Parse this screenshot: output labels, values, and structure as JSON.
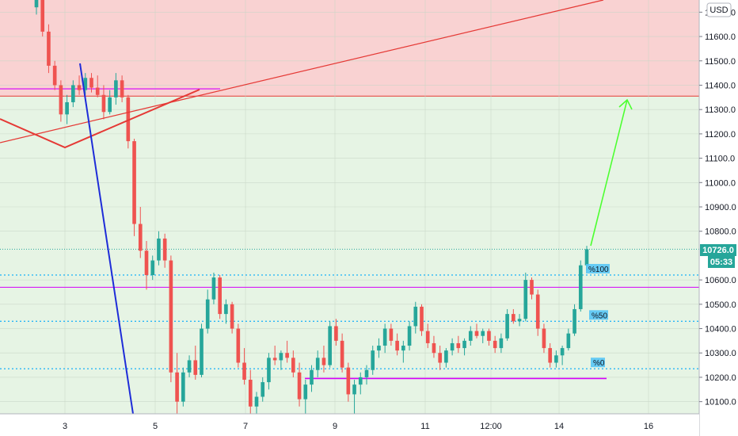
{
  "chart_data": {
    "type": "candlestick",
    "currency": "USD",
    "ylim": [
      10050,
      11750
    ],
    "y_ticks": [
      {
        "v": 11700,
        "label": "11700.0"
      },
      {
        "v": 11600,
        "label": "11600.0"
      },
      {
        "v": 11500,
        "label": "11500.0"
      },
      {
        "v": 11400,
        "label": "11400.0"
      },
      {
        "v": 11300,
        "label": "11300.0"
      },
      {
        "v": 11200,
        "label": "11200.0"
      },
      {
        "v": 11100,
        "label": "11100.0"
      },
      {
        "v": 11000,
        "label": "11000.0"
      },
      {
        "v": 10900,
        "label": "10900.0"
      },
      {
        "v": 10800,
        "label": "10800.0"
      },
      {
        "v": 10600,
        "label": "10600.0"
      },
      {
        "v": 10500,
        "label": "10500.0"
      },
      {
        "v": 10400,
        "label": "10400.0"
      },
      {
        "v": 10300,
        "label": "10300.0"
      },
      {
        "v": 10200,
        "label": "10200.0"
      },
      {
        "v": 10100,
        "label": "10100.0"
      }
    ],
    "x_ticks": [
      "3",
      "5",
      "7",
      "9",
      "11",
      "12:00",
      "14",
      "16"
    ],
    "current_price": "10726.0",
    "countdown": "05:33",
    "zones": [
      {
        "name": "resistance-zone",
        "from": 11355,
        "to": 11750,
        "color": "#f9d2d2"
      },
      {
        "name": "support-zone",
        "from": 10050,
        "to": 11355,
        "color": "#e6f4e4"
      }
    ],
    "zone_border_level": 11355,
    "fib_levels": [
      {
        "label": "%100",
        "value": 10620
      },
      {
        "label": "%50",
        "value": 10430
      },
      {
        "label": "%0",
        "value": 10235
      }
    ],
    "magenta_levels": [
      11385,
      10570,
      10195
    ],
    "candle_colors": {
      "up": "#26a69a",
      "down": "#ef5350"
    },
    "candles": [
      [
        11720,
        11780,
        11690,
        11760
      ],
      [
        11760,
        11770,
        11600,
        11620
      ],
      [
        11620,
        11650,
        11450,
        11480
      ],
      [
        11480,
        11500,
        11380,
        11400
      ],
      [
        11400,
        11420,
        11250,
        11280
      ],
      [
        11280,
        11360,
        11240,
        11330
      ],
      [
        11330,
        11420,
        11310,
        11400
      ],
      [
        11400,
        11440,
        11360,
        11380
      ],
      [
        11380,
        11450,
        11360,
        11430
      ],
      [
        11430,
        11450,
        11370,
        11390
      ],
      [
        11390,
        11440,
        11350,
        11360
      ],
      [
        11360,
        11400,
        11260,
        11290
      ],
      [
        11290,
        11380,
        11280,
        11350
      ],
      [
        11350,
        11450,
        11320,
        11420
      ],
      [
        11420,
        11440,
        11330,
        11350
      ],
      [
        11350,
        11360,
        11140,
        11170
      ],
      [
        11170,
        11180,
        10780,
        10830
      ],
      [
        10830,
        10900,
        10690,
        10720
      ],
      [
        10720,
        10760,
        10560,
        10620
      ],
      [
        10620,
        10700,
        10600,
        10680
      ],
      [
        10680,
        10800,
        10660,
        10770
      ],
      [
        10770,
        10790,
        10650,
        10680
      ],
      [
        10680,
        10700,
        10180,
        10220
      ],
      [
        10220,
        10300,
        10050,
        10100
      ],
      [
        10100,
        10240,
        10080,
        10220
      ],
      [
        10220,
        10290,
        10200,
        10270
      ],
      [
        10270,
        10330,
        10190,
        10210
      ],
      [
        10210,
        10420,
        10200,
        10400
      ],
      [
        10400,
        10560,
        10380,
        10520
      ],
      [
        10520,
        10630,
        10500,
        10610
      ],
      [
        10610,
        10620,
        10440,
        10460
      ],
      [
        10460,
        10520,
        10420,
        10500
      ],
      [
        10500,
        10510,
        10380,
        10400
      ],
      [
        10400,
        10420,
        10240,
        10260
      ],
      [
        10260,
        10320,
        10170,
        10190
      ],
      [
        10190,
        10230,
        10050,
        10080
      ],
      [
        10080,
        10140,
        10050,
        10120
      ],
      [
        10120,
        10200,
        10100,
        10180
      ],
      [
        10180,
        10300,
        10150,
        10280
      ],
      [
        10280,
        10330,
        10250,
        10270
      ],
      [
        10270,
        10310,
        10230,
        10300
      ],
      [
        10300,
        10350,
        10260,
        10280
      ],
      [
        10280,
        10310,
        10200,
        10220
      ],
      [
        10220,
        10260,
        10080,
        10110
      ],
      [
        10110,
        10190,
        10050,
        10170
      ],
      [
        10170,
        10250,
        10140,
        10230
      ],
      [
        10230,
        10310,
        10200,
        10280
      ],
      [
        10280,
        10330,
        10220,
        10250
      ],
      [
        10250,
        10430,
        10240,
        10410
      ],
      [
        10410,
        10440,
        10330,
        10350
      ],
      [
        10350,
        10380,
        10220,
        10240
      ],
      [
        10240,
        10260,
        10100,
        10130
      ],
      [
        10130,
        10190,
        10050,
        10170
      ],
      [
        10170,
        10220,
        10130,
        10200
      ],
      [
        10200,
        10250,
        10170,
        10230
      ],
      [
        10230,
        10330,
        10210,
        10310
      ],
      [
        10310,
        10360,
        10280,
        10330
      ],
      [
        10330,
        10420,
        10300,
        10400
      ],
      [
        10400,
        10420,
        10330,
        10350
      ],
      [
        10350,
        10380,
        10290,
        10310
      ],
      [
        10310,
        10350,
        10260,
        10330
      ],
      [
        10330,
        10430,
        10310,
        10410
      ],
      [
        10410,
        10510,
        10380,
        10490
      ],
      [
        10490,
        10500,
        10370,
        10390
      ],
      [
        10390,
        10420,
        10320,
        10340
      ],
      [
        10340,
        10370,
        10280,
        10300
      ],
      [
        10300,
        10330,
        10230,
        10260
      ],
      [
        10260,
        10320,
        10240,
        10310
      ],
      [
        10310,
        10360,
        10290,
        10340
      ],
      [
        10340,
        10370,
        10300,
        10320
      ],
      [
        10320,
        10360,
        10290,
        10350
      ],
      [
        10350,
        10410,
        10330,
        10390
      ],
      [
        10390,
        10420,
        10360,
        10370
      ],
      [
        10370,
        10400,
        10340,
        10390
      ],
      [
        10390,
        10400,
        10330,
        10350
      ],
      [
        10350,
        10370,
        10300,
        10320
      ],
      [
        10320,
        10380,
        10300,
        10360
      ],
      [
        10360,
        10480,
        10350,
        10460
      ],
      [
        10460,
        10480,
        10420,
        10430
      ],
      [
        10430,
        10460,
        10410,
        10440
      ],
      [
        10440,
        10630,
        10430,
        10600
      ],
      [
        10600,
        10610,
        10520,
        10540
      ],
      [
        10540,
        10560,
        10370,
        10400
      ],
      [
        10400,
        10420,
        10300,
        10320
      ],
      [
        10320,
        10340,
        10240,
        10260
      ],
      [
        10260,
        10310,
        10240,
        10290
      ],
      [
        10290,
        10330,
        10250,
        10320
      ],
      [
        10320,
        10400,
        10310,
        10380
      ],
      [
        10380,
        10500,
        10370,
        10480
      ],
      [
        10480,
        10680,
        10470,
        10660
      ],
      [
        10660,
        10740,
        10640,
        10726
      ]
    ]
  }
}
